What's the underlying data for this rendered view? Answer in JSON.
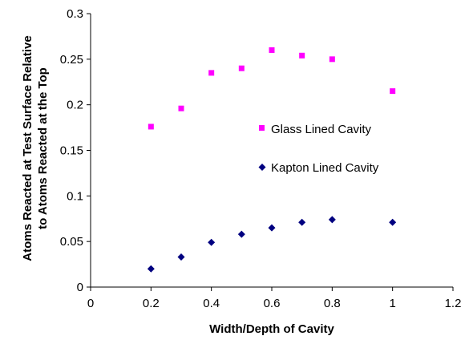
{
  "chart_data": {
    "type": "scatter",
    "title": "",
    "xlabel": "Width/Depth of Cavity",
    "ylabel_lines": [
      "Atoms Reacted at Test Surface Relative",
      "to Atoms Reacted at the Top"
    ],
    "xlim": [
      0,
      1.2
    ],
    "ylim": [
      0,
      0.3
    ],
    "x_ticks": [
      "0",
      "0.2",
      "0.4",
      "0.6",
      "0.8",
      "1",
      "1.2"
    ],
    "y_ticks": [
      "0",
      "0.05",
      "0.1",
      "0.15",
      "0.2",
      "0.25",
      "0.3"
    ],
    "x_tick_values": [
      0,
      0.2,
      0.4,
      0.6,
      0.8,
      1.0,
      1.2
    ],
    "y_tick_values": [
      0,
      0.05,
      0.1,
      0.15,
      0.2,
      0.25,
      0.3
    ],
    "grid": false,
    "legend_position": "right",
    "series": [
      {
        "name": "Glass Lined Cavity",
        "marker": "square",
        "color": "#ff00ff",
        "x": [
          0.2,
          0.3,
          0.4,
          0.5,
          0.6,
          0.7,
          0.8,
          1.0
        ],
        "y": [
          0.176,
          0.196,
          0.235,
          0.24,
          0.26,
          0.254,
          0.25,
          0.215
        ]
      },
      {
        "name": "Kapton Lined Cavity",
        "marker": "diamond",
        "color": "#000080",
        "x": [
          0.2,
          0.3,
          0.4,
          0.5,
          0.6,
          0.7,
          0.8,
          1.0
        ],
        "y": [
          0.02,
          0.033,
          0.049,
          0.058,
          0.065,
          0.071,
          0.074,
          0.071
        ]
      }
    ]
  }
}
